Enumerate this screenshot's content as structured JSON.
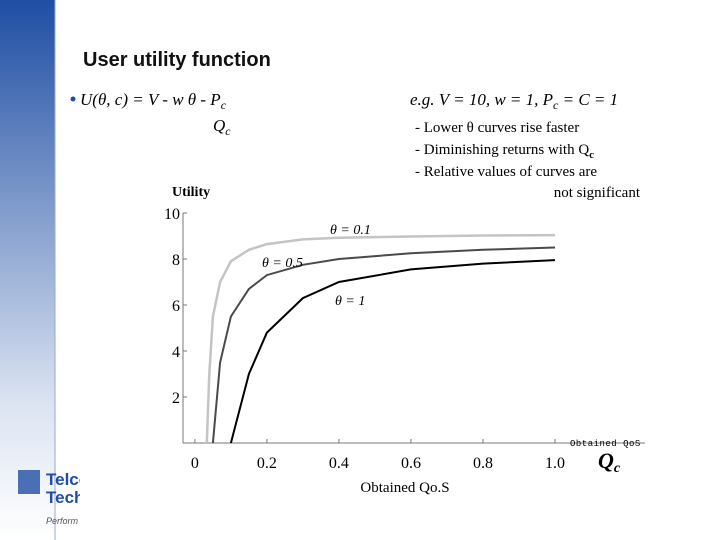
{
  "slide": {
    "title": "User utility function",
    "formula": {
      "main": "U(θ, c) = V - w θ - P",
      "sub": "c",
      "denominator": "Q",
      "denominator_sub": "c"
    },
    "example": {
      "before": "e.g. V = 10, w = 1, P",
      "sub": "c",
      "after": " = C = 1"
    },
    "notes": [
      {
        "text": "- Lower θ curves rise faster"
      },
      {
        "text": "- Diminishing returns with Q",
        "sub": "c"
      },
      {
        "text": "- Relative values of curves are"
      },
      {
        "text": "not significant"
      }
    ],
    "logo": [
      "Telco",
      "Tech",
      "Perform"
    ]
  },
  "chart_data": {
    "type": "line",
    "ylabel": "Utility",
    "xlabel": "Obtained Qo.S",
    "x_end_label": "Obtained QoS",
    "x_symbol": "Q",
    "x_symbol_sub": "c",
    "xlim": [
      -0.033,
      1.25
    ],
    "ylim": [
      0,
      10
    ],
    "xticks": [
      0,
      0.2,
      0.4,
      0.6,
      0.8,
      {
        "value": 1,
        "label": "1.0"
      }
    ],
    "yticks": [
      2,
      4,
      6,
      8,
      10
    ],
    "series": [
      {
        "name": "θ = 0.1",
        "color": "#c4c4c4",
        "x": [
          0.033,
          0.04,
          0.05,
          0.07,
          0.1,
          0.15,
          0.2,
          0.3,
          0.4,
          0.6,
          0.8,
          1.0
        ],
        "values": [
          0,
          3,
          5.5,
          7,
          7.9,
          8.4,
          8.65,
          8.85,
          8.92,
          8.98,
          9.02,
          9.04
        ]
      },
      {
        "name": "θ = 0.5",
        "color": "#4a4a4a",
        "x": [
          0.05,
          0.07,
          0.1,
          0.15,
          0.2,
          0.3,
          0.4,
          0.6,
          0.8,
          1.0
        ],
        "values": [
          0,
          3.5,
          5.5,
          6.7,
          7.3,
          7.75,
          8.0,
          8.25,
          8.4,
          8.5
        ]
      },
      {
        "name": "θ = 1",
        "color": "#000000",
        "x": [
          0.1,
          0.15,
          0.2,
          0.3,
          0.4,
          0.6,
          0.8,
          1.0
        ],
        "values": [
          0,
          3,
          4.8,
          6.3,
          7.0,
          7.55,
          7.8,
          7.95
        ]
      }
    ]
  }
}
